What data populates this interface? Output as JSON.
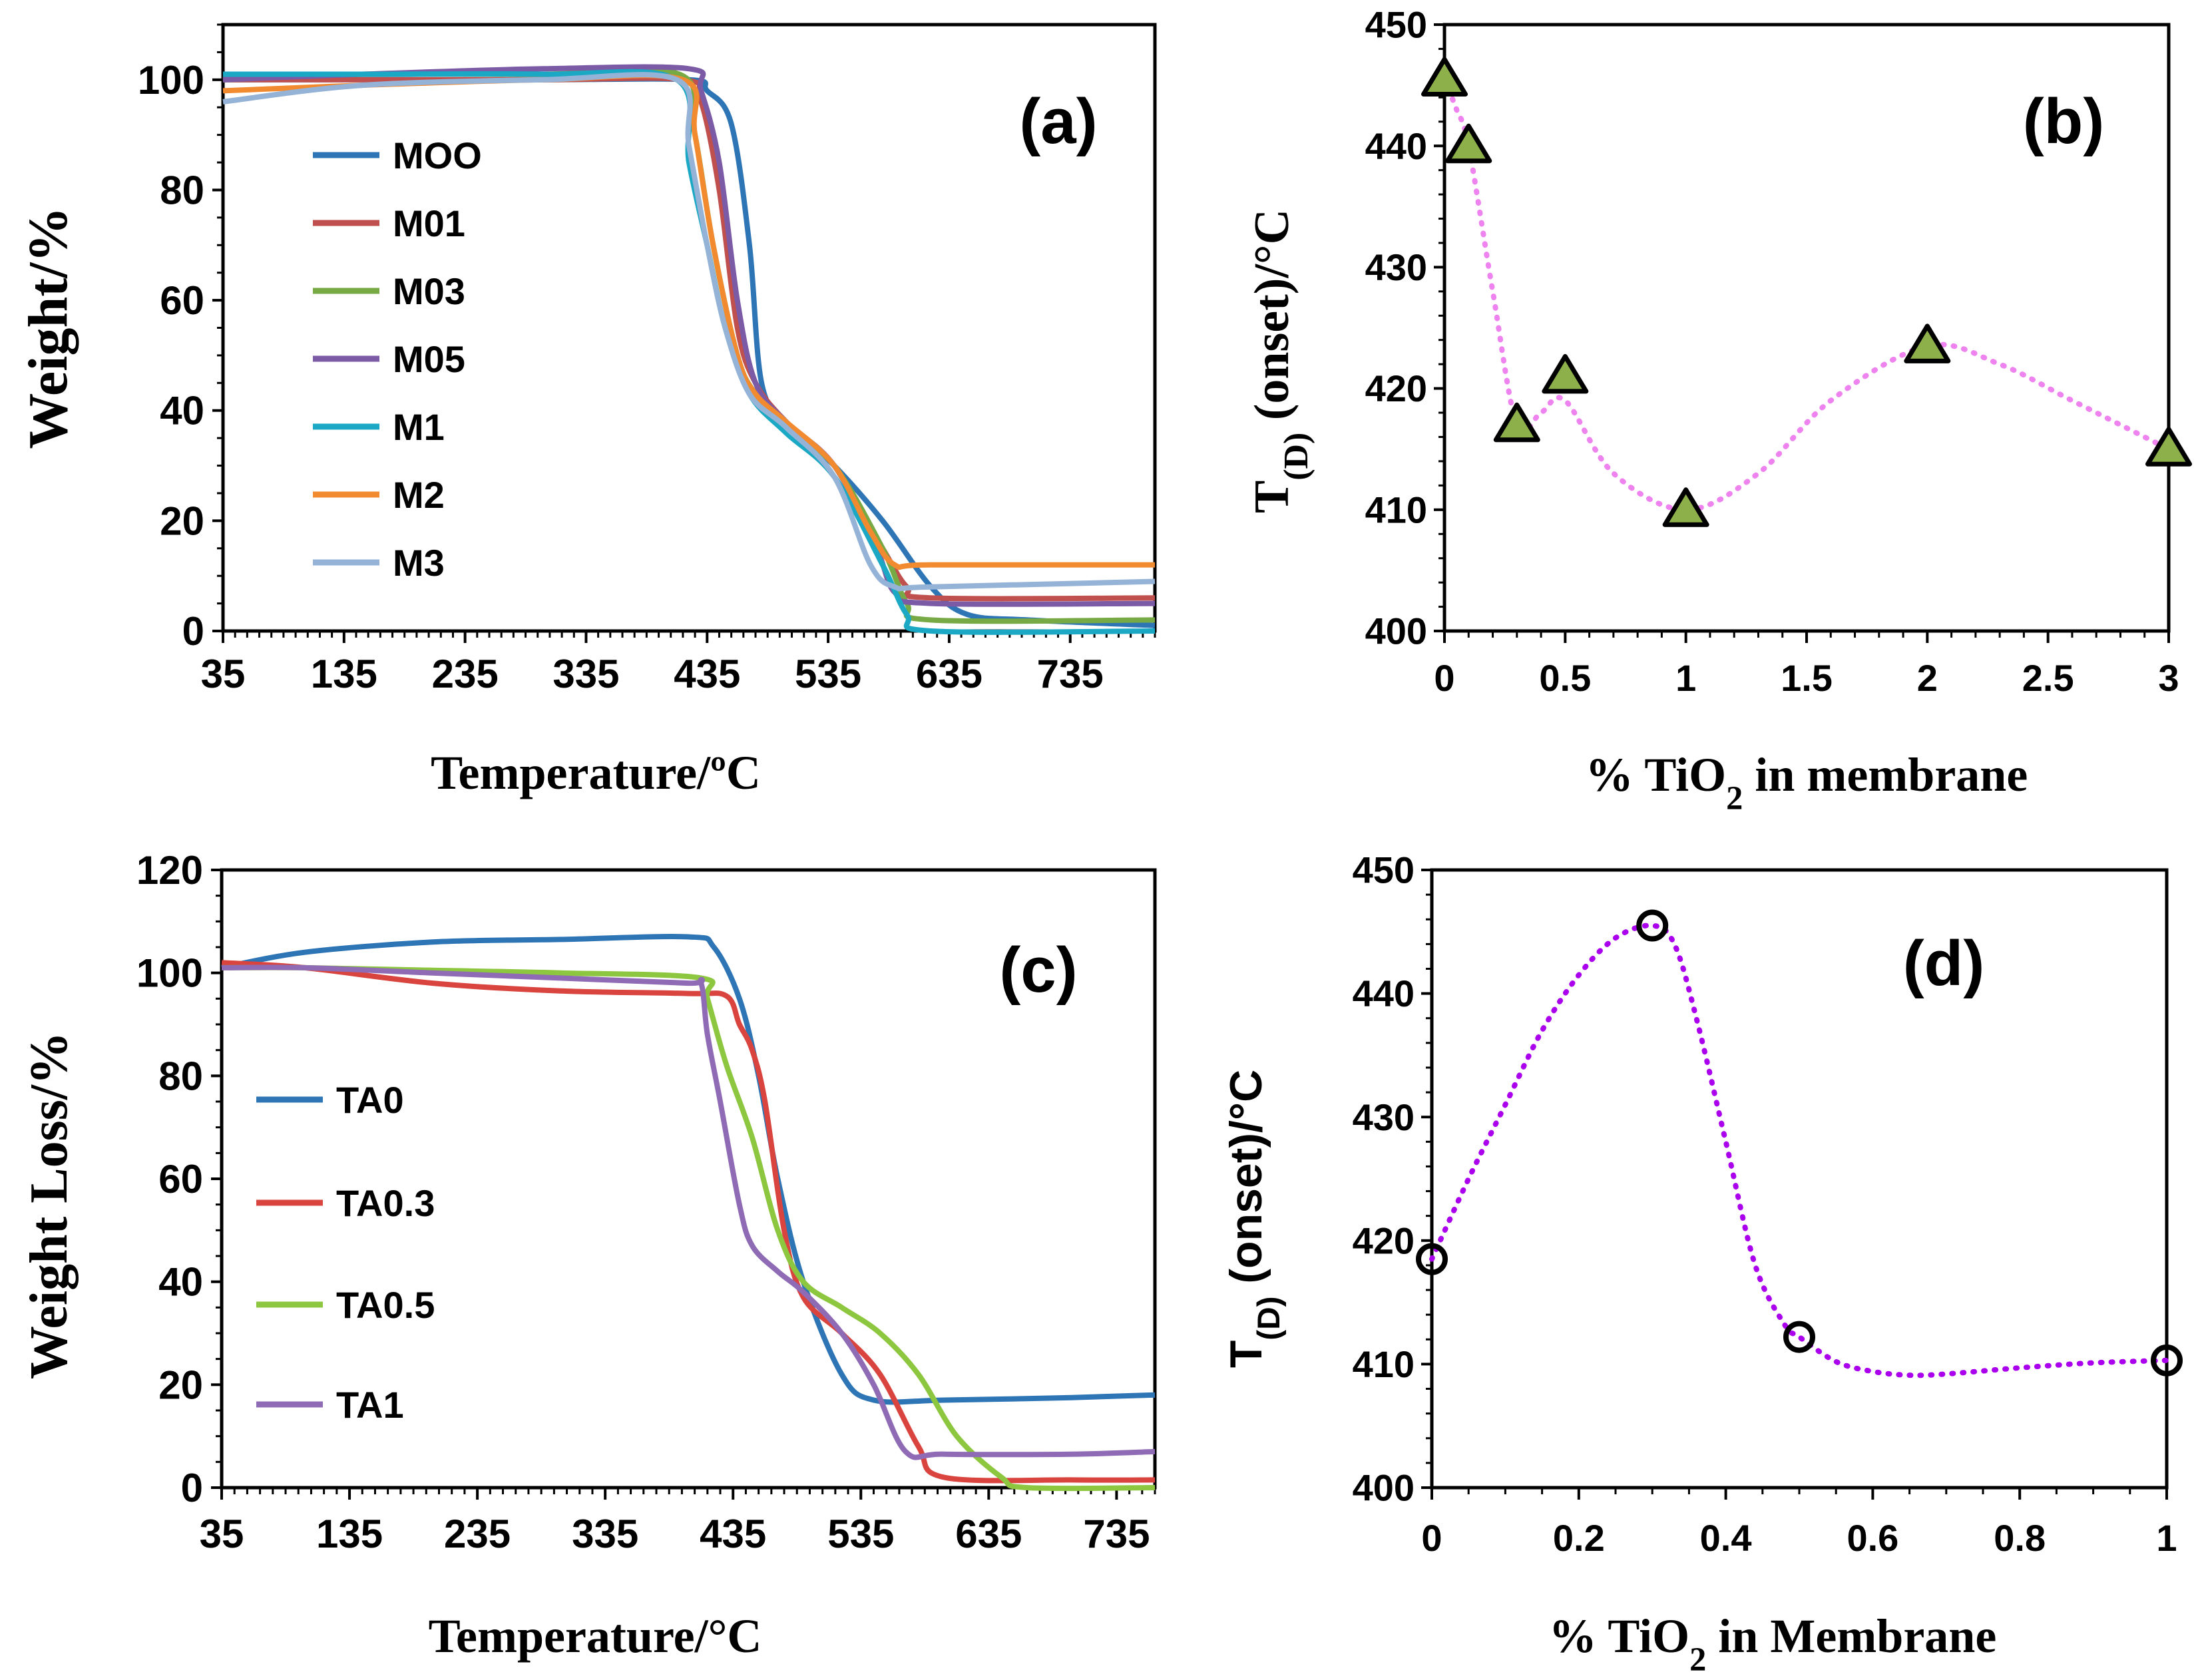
{
  "chart_data": [
    {
      "id": "a",
      "type": "line",
      "panel_label": "(a)",
      "xlabel": "Temperature/ºC",
      "ylabel": "Weight/%",
      "xlim": [
        35,
        805
      ],
      "ylim": [
        0,
        110
      ],
      "xticks": [
        35,
        135,
        235,
        335,
        435,
        535,
        635,
        735
      ],
      "yticks": [
        0,
        20,
        40,
        60,
        80,
        100
      ],
      "legend_position": "left-center",
      "series": [
        {
          "name": "MOO",
          "color": "#2E75B6",
          "x": [
            35,
            150,
            300,
            420,
            435,
            455,
            470,
            480,
            500,
            540,
            580,
            620,
            650,
            700,
            805
          ],
          "y": [
            100,
            100,
            100,
            100,
            98,
            92,
            70,
            45,
            38,
            30,
            20,
            8,
            3,
            2,
            1
          ]
        },
        {
          "name": "M01",
          "color": "#C0504D",
          "x": [
            35,
            150,
            300,
            415,
            430,
            445,
            460,
            475,
            500,
            540,
            580,
            600,
            620,
            805
          ],
          "y": [
            100,
            100,
            100,
            100,
            96,
            80,
            55,
            45,
            38,
            30,
            15,
            8,
            6,
            6
          ]
        },
        {
          "name": "M03",
          "color": "#77AA44",
          "x": [
            35,
            150,
            300,
            412,
            425,
            440,
            460,
            475,
            500,
            540,
            580,
            600,
            620,
            805
          ],
          "y": [
            100,
            101,
            101,
            101,
            90,
            70,
            50,
            43,
            37,
            30,
            15,
            5,
            2,
            2
          ]
        },
        {
          "name": "M05",
          "color": "#7B5AA6",
          "x": [
            35,
            150,
            300,
            420,
            430,
            445,
            460,
            475,
            500,
            540,
            575,
            590,
            620,
            805
          ],
          "y": [
            100,
            101,
            102,
            102,
            98,
            85,
            60,
            45,
            38,
            30,
            15,
            7,
            5,
            5
          ]
        },
        {
          "name": "M1",
          "color": "#1BA8C4",
          "x": [
            35,
            150,
            300,
            410,
            420,
            435,
            450,
            470,
            500,
            540,
            580,
            600,
            620,
            805
          ],
          "y": [
            101,
            101,
            101,
            100,
            85,
            70,
            55,
            43,
            36,
            28,
            12,
            3,
            0,
            0
          ]
        },
        {
          "name": "M2",
          "color": "#F28A30",
          "x": [
            35,
            150,
            300,
            415,
            425,
            440,
            460,
            475,
            500,
            540,
            570,
            590,
            620,
            805
          ],
          "y": [
            98,
            99,
            100,
            100,
            90,
            70,
            50,
            43,
            38,
            30,
            18,
            12,
            12,
            12
          ]
        },
        {
          "name": "M3",
          "color": "#95B3D7",
          "x": [
            35,
            150,
            300,
            410,
            420,
            435,
            450,
            470,
            500,
            540,
            570,
            590,
            620,
            805
          ],
          "y": [
            96,
            99,
            100,
            100,
            88,
            70,
            55,
            43,
            37,
            28,
            12,
            8,
            8,
            9
          ]
        }
      ]
    },
    {
      "id": "b",
      "type": "scatter",
      "panel_label": "(b)",
      "xlabel": "% TiO2 in membrane",
      "ylabel": "T(D) (onset)/°C",
      "xlim": [
        0,
        3
      ],
      "ylim": [
        400,
        450
      ],
      "xticks": [
        0,
        0.5,
        1,
        1.5,
        2,
        2.5,
        3
      ],
      "xtick_labels": [
        "0",
        "0.5",
        "1",
        "1.5",
        "2",
        "2.5",
        "3"
      ],
      "yticks": [
        400,
        410,
        420,
        430,
        440,
        450
      ],
      "marker": "triangle",
      "marker_color": "#8DB04A",
      "fit_line_color": "#EE82EE",
      "x": [
        0,
        0.1,
        0.3,
        0.5,
        1,
        2,
        3
      ],
      "y": [
        445.5,
        440,
        417,
        421,
        410,
        423.5,
        415
      ],
      "fit_x": [
        0,
        0.05,
        0.1,
        0.2,
        0.3,
        0.4,
        0.5,
        0.7,
        1,
        1.3,
        1.6,
        2,
        2.3,
        2.6,
        3
      ],
      "fit_y": [
        445.5,
        443,
        440,
        428,
        417,
        418,
        419,
        413,
        410,
        413,
        419,
        423.5,
        422,
        419,
        415
      ]
    },
    {
      "id": "c",
      "type": "line",
      "panel_label": "(c)",
      "xlabel": "Temperature/°C",
      "ylabel": "Weight Loss/%",
      "xlim": [
        35,
        765
      ],
      "ylim": [
        0,
        120
      ],
      "xticks": [
        35,
        135,
        235,
        335,
        435,
        535,
        635,
        735
      ],
      "yticks": [
        0,
        20,
        40,
        60,
        80,
        100,
        120
      ],
      "legend_position": "left-center",
      "series": [
        {
          "name": "TA0",
          "color": "#2E75B6",
          "x": [
            35,
            100,
            200,
            300,
            400,
            420,
            440,
            455,
            470,
            490,
            520,
            545,
            600,
            700,
            765
          ],
          "y": [
            101,
            104,
            106,
            106.5,
            107,
            105,
            95,
            80,
            60,
            40,
            22,
            17,
            17,
            17.5,
            18
          ]
        },
        {
          "name": "TA0.3",
          "color": "#D9443F",
          "x": [
            35,
            100,
            200,
            300,
            400,
            430,
            440,
            450,
            460,
            475,
            490,
            520,
            550,
            580,
            600,
            700,
            765
          ],
          "y": [
            102,
            101,
            98,
            96.5,
            96,
            95.5,
            90,
            85,
            75,
            50,
            37,
            30,
            22,
            8,
            2,
            1.5,
            1.5
          ]
        },
        {
          "name": "TA0.5",
          "color": "#8DC63F",
          "x": [
            35,
            100,
            200,
            300,
            410,
            415,
            430,
            450,
            470,
            490,
            520,
            550,
            580,
            610,
            645,
            665,
            765
          ],
          "y": [
            101,
            101,
            100.5,
            100,
            99,
            95,
            82,
            68,
            50,
            40,
            35,
            30,
            22,
            10,
            2,
            0,
            0
          ]
        },
        {
          "name": "TA1",
          "color": "#8E6BB4",
          "x": [
            35,
            100,
            200,
            300,
            400,
            410,
            415,
            425,
            440,
            450,
            470,
            490,
            520,
            545,
            570,
            600,
            700,
            765
          ],
          "y": [
            101,
            101,
            100,
            99,
            98,
            98,
            88,
            75,
            55,
            47,
            42,
            38,
            30,
            20,
            7,
            6.5,
            6.5,
            7
          ]
        }
      ]
    },
    {
      "id": "d",
      "type": "scatter",
      "panel_label": "(d)",
      "xlabel": "% TiO2 in Membrane",
      "ylabel": "T(D) (onset)/°C",
      "xlim": [
        0,
        1
      ],
      "ylim": [
        400,
        450
      ],
      "xticks": [
        0,
        0.2,
        0.4,
        0.6,
        0.8,
        1
      ],
      "xtick_labels": [
        "0",
        "0.2",
        "0.4",
        "0.6",
        "0.8",
        "1"
      ],
      "yticks": [
        400,
        410,
        420,
        430,
        440,
        450
      ],
      "marker": "circle-open",
      "marker_color": "#000000",
      "fit_line_color": "#AA00EE",
      "x": [
        0,
        0.3,
        0.5,
        1
      ],
      "y": [
        418.5,
        445.5,
        412.2,
        410.3
      ],
      "fit_x": [
        0,
        0.05,
        0.1,
        0.15,
        0.2,
        0.25,
        0.3,
        0.33,
        0.36,
        0.4,
        0.44,
        0.48,
        0.5,
        0.55,
        0.6,
        0.65,
        0.7,
        0.8,
        0.9,
        1
      ],
      "fit_y": [
        418.5,
        425,
        431,
        437,
        441.5,
        444.5,
        445.5,
        444,
        438,
        428,
        418,
        413.2,
        412.2,
        410.2,
        409.4,
        409.1,
        409.2,
        409.7,
        410.1,
        410.3
      ]
    }
  ]
}
